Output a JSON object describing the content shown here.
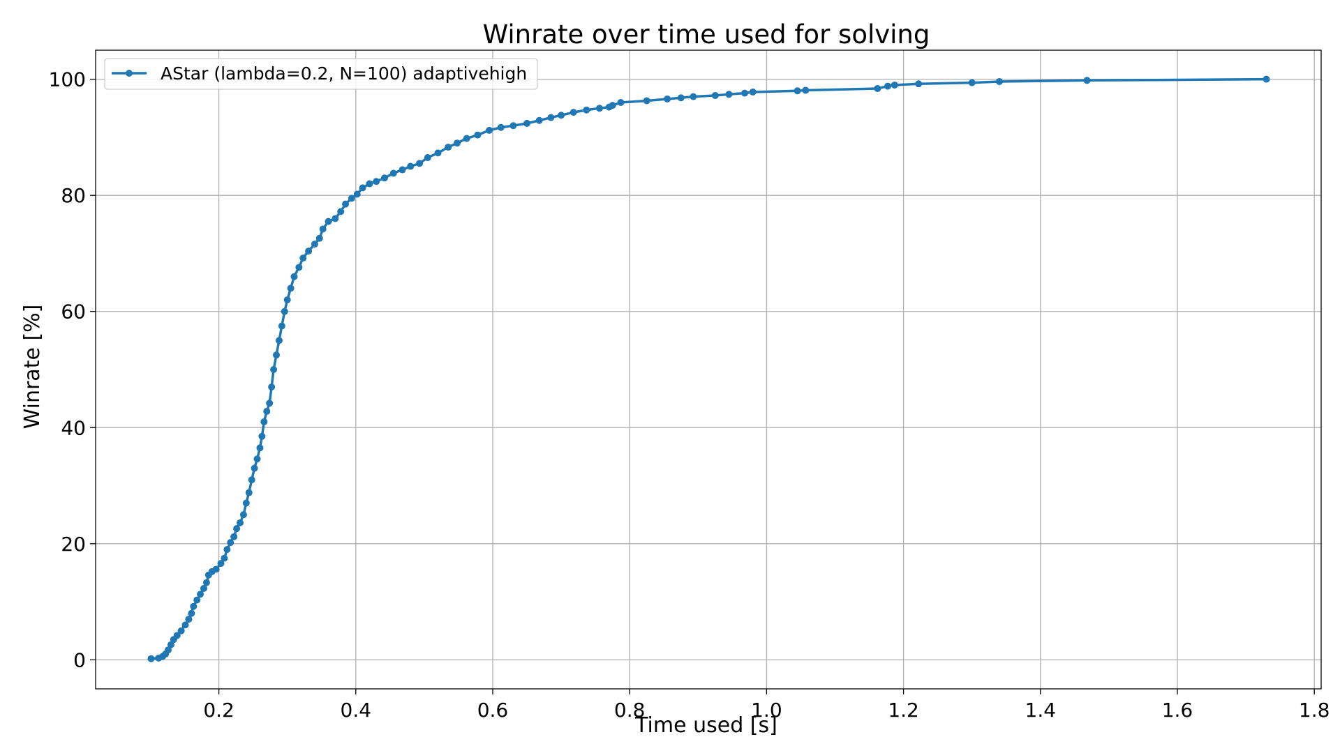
{
  "chart_data": {
    "type": "line",
    "title": "Winrate over time used for solving",
    "xlabel": "Time used [s]",
    "ylabel": "Winrate [%]",
    "xlim": [
      0.02,
      1.81
    ],
    "ylim": [
      -5,
      105
    ],
    "xticks": [
      "0.2",
      "0.4",
      "0.6",
      "0.8",
      "1.0",
      "1.2",
      "1.4",
      "1.6",
      "1.8"
    ],
    "yticks": [
      "0",
      "20",
      "40",
      "60",
      "80",
      "100"
    ],
    "grid": true,
    "legend_position": "upper-left",
    "series": [
      {
        "name": "AStar (lambda=0.2, N=100) adaptivehigh",
        "color": "#1f77b4",
        "marker": "circle",
        "points": [
          [
            0.101,
            0.2
          ],
          [
            0.112,
            0.3
          ],
          [
            0.118,
            0.6
          ],
          [
            0.122,
            1.0
          ],
          [
            0.126,
            1.7
          ],
          [
            0.13,
            2.6
          ],
          [
            0.134,
            3.5
          ],
          [
            0.139,
            4.2
          ],
          [
            0.145,
            5.0
          ],
          [
            0.151,
            6.0
          ],
          [
            0.156,
            7.0
          ],
          [
            0.16,
            8.0
          ],
          [
            0.163,
            9.2
          ],
          [
            0.168,
            10.3
          ],
          [
            0.173,
            11.3
          ],
          [
            0.178,
            12.3
          ],
          [
            0.182,
            13.3
          ],
          [
            0.185,
            14.6
          ],
          [
            0.19,
            15.2
          ],
          [
            0.196,
            15.6
          ],
          [
            0.203,
            16.6
          ],
          [
            0.208,
            17.5
          ],
          [
            0.212,
            19.0
          ],
          [
            0.217,
            20.2
          ],
          [
            0.222,
            21.2
          ],
          [
            0.226,
            22.6
          ],
          [
            0.231,
            23.6
          ],
          [
            0.236,
            25.0
          ],
          [
            0.24,
            27.0
          ],
          [
            0.244,
            28.8
          ],
          [
            0.248,
            31.0
          ],
          [
            0.252,
            33.0
          ],
          [
            0.256,
            34.6
          ],
          [
            0.26,
            36.5
          ],
          [
            0.263,
            38.5
          ],
          [
            0.266,
            41.0
          ],
          [
            0.27,
            42.8
          ],
          [
            0.274,
            44.2
          ],
          [
            0.277,
            47.0
          ],
          [
            0.28,
            50.0
          ],
          [
            0.284,
            52.5
          ],
          [
            0.288,
            55.0
          ],
          [
            0.292,
            57.5
          ],
          [
            0.296,
            60.0
          ],
          [
            0.3,
            62.0
          ],
          [
            0.305,
            64.0
          ],
          [
            0.31,
            66.0
          ],
          [
            0.317,
            67.6
          ],
          [
            0.323,
            69.2
          ],
          [
            0.331,
            70.4
          ],
          [
            0.34,
            71.6
          ],
          [
            0.347,
            72.6
          ],
          [
            0.352,
            74.2
          ],
          [
            0.36,
            75.5
          ],
          [
            0.37,
            76.0
          ],
          [
            0.378,
            77.2
          ],
          [
            0.385,
            78.5
          ],
          [
            0.394,
            79.5
          ],
          [
            0.402,
            80.2
          ],
          [
            0.41,
            81.3
          ],
          [
            0.42,
            82.0
          ],
          [
            0.43,
            82.4
          ],
          [
            0.442,
            83.0
          ],
          [
            0.455,
            83.8
          ],
          [
            0.468,
            84.4
          ],
          [
            0.48,
            85.0
          ],
          [
            0.493,
            85.5
          ],
          [
            0.505,
            86.5
          ],
          [
            0.52,
            87.3
          ],
          [
            0.535,
            88.3
          ],
          [
            0.548,
            89.0
          ],
          [
            0.562,
            89.8
          ],
          [
            0.578,
            90.4
          ],
          [
            0.595,
            91.2
          ],
          [
            0.612,
            91.7
          ],
          [
            0.63,
            92.0
          ],
          [
            0.65,
            92.4
          ],
          [
            0.668,
            92.9
          ],
          [
            0.685,
            93.4
          ],
          [
            0.7,
            93.8
          ],
          [
            0.718,
            94.3
          ],
          [
            0.737,
            94.7
          ],
          [
            0.756,
            95.0
          ],
          [
            0.77,
            95.2
          ],
          [
            0.775,
            95.5
          ],
          [
            0.787,
            96.0
          ],
          [
            0.825,
            96.3
          ],
          [
            0.855,
            96.6
          ],
          [
            0.875,
            96.8
          ],
          [
            0.893,
            97.0
          ],
          [
            0.925,
            97.2
          ],
          [
            0.945,
            97.4
          ],
          [
            0.968,
            97.6
          ],
          [
            0.98,
            97.8
          ],
          [
            1.045,
            98.0
          ],
          [
            1.057,
            98.1
          ],
          [
            1.162,
            98.4
          ],
          [
            1.177,
            98.8
          ],
          [
            1.187,
            99.0
          ],
          [
            1.222,
            99.2
          ],
          [
            1.3,
            99.4
          ],
          [
            1.34,
            99.6
          ],
          [
            1.468,
            99.8
          ],
          [
            1.73,
            100.0
          ]
        ]
      }
    ]
  }
}
